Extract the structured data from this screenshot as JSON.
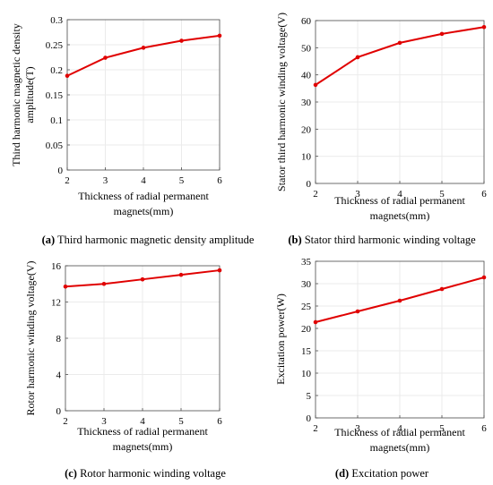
{
  "colors": {
    "series": "#e00000",
    "axes": "#4d4d4d",
    "grid": "#ebebeb"
  },
  "chart_data": [
    {
      "type": "line",
      "panel": "a",
      "x": [
        2,
        3,
        4,
        5,
        6
      ],
      "series": [
        {
          "values": [
            0.188,
            0.224,
            0.244,
            0.258,
            0.268
          ]
        }
      ],
      "xlabel": [
        "Thickness of radial permanent",
        "magnets(mm)"
      ],
      "ylabel": [
        "Third harmonic magnetic density",
        "amplitude(T)"
      ],
      "xlim": [
        2,
        6
      ],
      "ylim": [
        0,
        0.3
      ],
      "xticks": [
        "2",
        "3",
        "4",
        "5",
        "6"
      ],
      "yticks": [
        "0",
        "0.05",
        "0.1",
        "0.15",
        "0.2",
        "0.25",
        "0.3"
      ],
      "caption_label": "(a)",
      "caption": "Third harmonic magnetic density amplitude",
      "grid": true
    },
    {
      "type": "line",
      "panel": "b",
      "x": [
        2,
        3,
        4,
        5,
        6
      ],
      "series": [
        {
          "values": [
            36.3,
            46.5,
            51.8,
            55.1,
            57.6
          ]
        }
      ],
      "xlabel": [
        "Thickness of radial permanent",
        "magnets(mm)"
      ],
      "ylabel": [
        "Stator third harmonic winding voltage(V)"
      ],
      "xlim": [
        2,
        6
      ],
      "ylim": [
        0,
        60
      ],
      "xticks": [
        "2",
        "3",
        "4",
        "5",
        "6"
      ],
      "yticks": [
        "0",
        "10",
        "20",
        "30",
        "40",
        "50",
        "60"
      ],
      "caption_label": "(b)",
      "caption": "Stator third harmonic winding voltage",
      "grid": true
    },
    {
      "type": "line",
      "panel": "c",
      "x": [
        2,
        3,
        4,
        5,
        6
      ],
      "series": [
        {
          "values": [
            13.7,
            14.0,
            14.5,
            15.0,
            15.5
          ]
        }
      ],
      "xlabel": [
        "Thickness of radial permanent",
        "magnets(mm)"
      ],
      "ylabel": [
        "Rotor harmonic winding voltage(V)"
      ],
      "xlim": [
        2,
        6
      ],
      "ylim": [
        0,
        16
      ],
      "xticks": [
        "2",
        "3",
        "4",
        "5",
        "6"
      ],
      "yticks": [
        "0",
        "4",
        "8",
        "12",
        "16"
      ],
      "caption_label": "(c)",
      "caption": "Rotor harmonic winding voltage",
      "grid": true
    },
    {
      "type": "line",
      "panel": "d",
      "x": [
        2,
        3,
        4,
        5,
        6
      ],
      "series": [
        {
          "values": [
            21.4,
            23.8,
            26.2,
            28.8,
            31.4
          ]
        }
      ],
      "xlabel": [
        "Thickness of radial permanent",
        "magnets(mm)"
      ],
      "ylabel": [
        "Excitation power(W)"
      ],
      "xlim": [
        2,
        6
      ],
      "ylim": [
        0,
        35
      ],
      "xticks": [
        "2",
        "3",
        "4",
        "5",
        "6"
      ],
      "yticks": [
        "0",
        "5",
        "10",
        "15",
        "20",
        "25",
        "30",
        "35"
      ],
      "caption_label": "(d)",
      "caption": "Excitation power",
      "grid": true
    }
  ]
}
